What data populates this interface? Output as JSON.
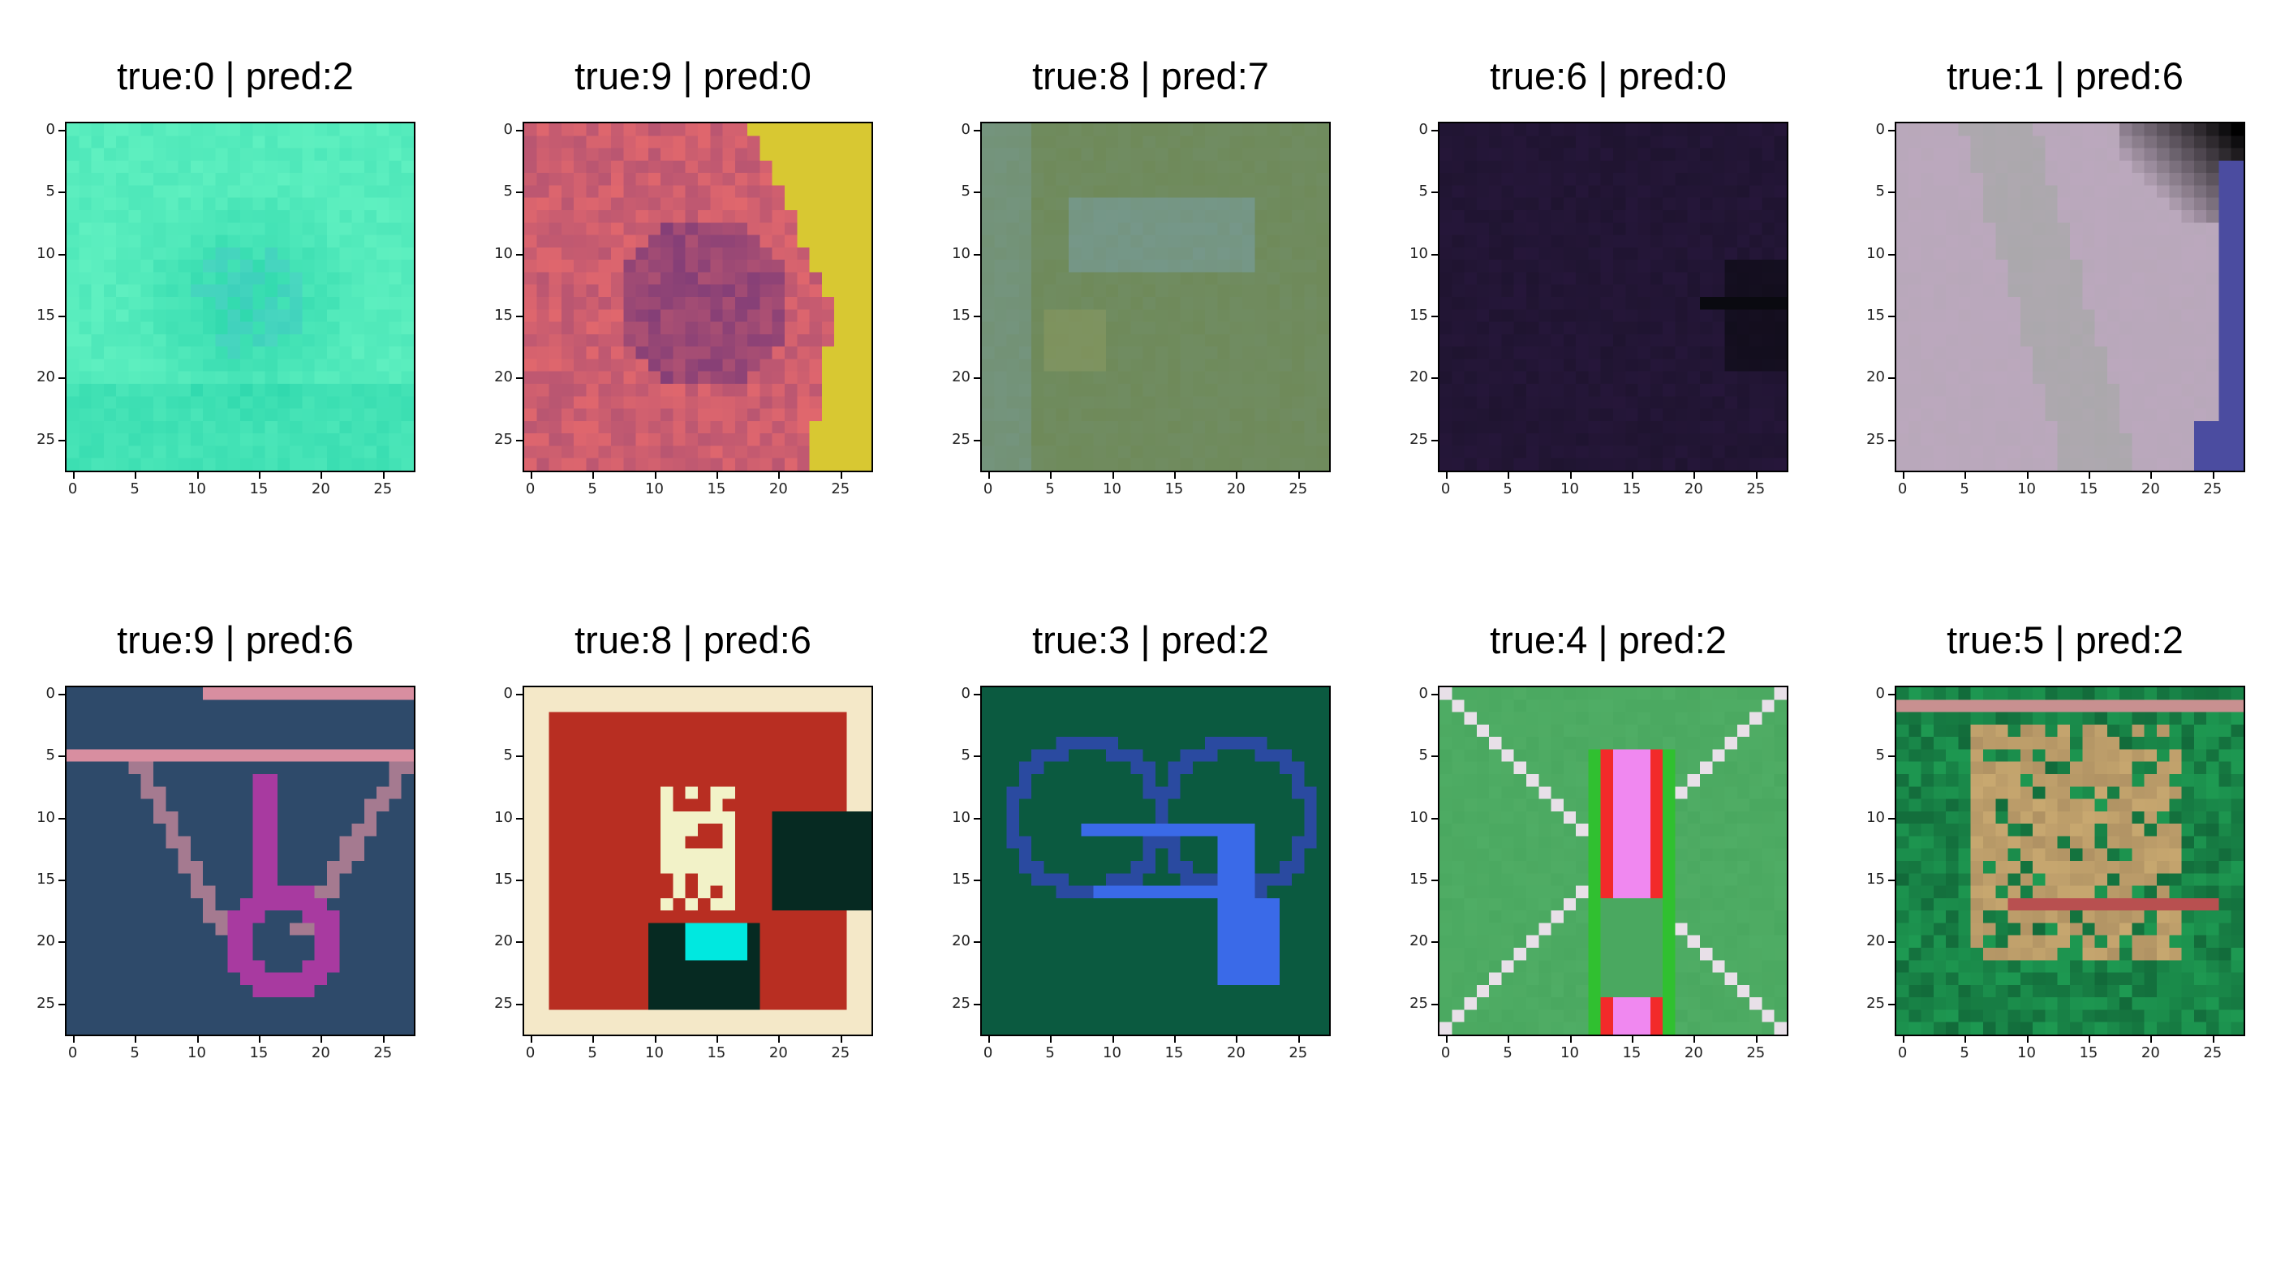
{
  "panels": [
    {
      "title": "true:0 | pred:2",
      "kind": "teal-blob",
      "colors": {
        "bg": "#5ff0c0",
        "fg": "#1ccfa6",
        "accent": "#4cc9c9"
      }
    },
    {
      "title": "true:9 | pred:0",
      "kind": "pink-cells",
      "colors": {
        "bg": "#d8c832",
        "fg": "#ec6c6c",
        "accent": "#7a3a78"
      }
    },
    {
      "title": "true:8 | pred:7",
      "kind": "olive-cloud",
      "colors": {
        "bg": "#6f8a5a",
        "fg": "#7aa0a8",
        "accent": "#8c9a60"
      }
    },
    {
      "title": "true:6 | pred:0",
      "kind": "dark-purple",
      "colors": {
        "bg": "#1f1430",
        "fg": "#2a1840",
        "accent": "#0a0a10"
      }
    },
    {
      "title": "true:1 | pred:6",
      "kind": "lilac-gray",
      "colors": {
        "bg": "#bba8bd",
        "fg": "#9aa89a",
        "accent": "#4b4ca0"
      }
    },
    {
      "title": "true:9 | pred:6",
      "kind": "navy-six",
      "colors": {
        "bg": "#2e4a6a",
        "fg": "#a83aa0",
        "accent": "#d88ea0"
      }
    },
    {
      "title": "true:8 | pred:6",
      "kind": "red-eight",
      "colors": {
        "bg": "#b82e22",
        "fg": "#f2f2c8",
        "accent": "#00e8e0"
      }
    },
    {
      "title": "true:3 | pred:2",
      "kind": "green-heart",
      "colors": {
        "bg": "#0b5a40",
        "fg": "#3a6ae8",
        "accent": "#2a4aa0"
      }
    },
    {
      "title": "true:4 | pred:2",
      "kind": "green-pink",
      "colors": {
        "bg": "#4aa860",
        "fg": "#f088f0",
        "accent": "#f22a2a"
      }
    },
    {
      "title": "true:5 | pred:2",
      "kind": "green-tan",
      "colors": {
        "bg": "#1e9a52",
        "fg": "#c8a870",
        "accent": "#b85050"
      }
    }
  ],
  "ticks": {
    "y": [
      "0",
      "5",
      "10",
      "15",
      "20",
      "25"
    ],
    "x": [
      "0",
      "5",
      "10",
      "15",
      "20",
      "25"
    ]
  }
}
